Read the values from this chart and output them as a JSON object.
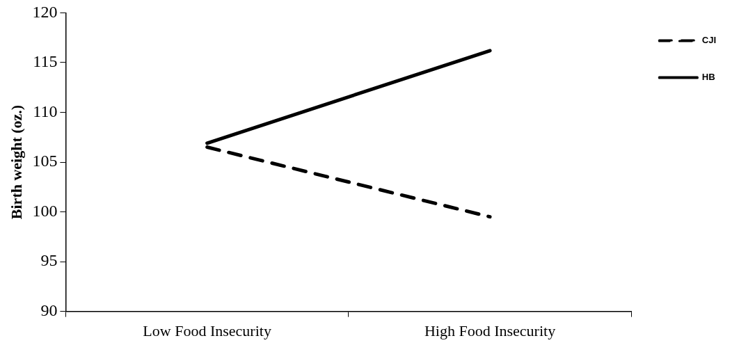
{
  "chart_data": {
    "type": "line",
    "ylabel": "Birth weight (oz.)",
    "categories": [
      "Low Food Insecurity",
      "High Food Insecurity"
    ],
    "series": [
      {
        "name": "CJI",
        "color": "#000000",
        "values": [
          106.5,
          99.5
        ],
        "line_style": "dashed"
      },
      {
        "name": "HB",
        "color": "#000000",
        "values": [
          106.9,
          116.2
        ],
        "line_style": "solid"
      }
    ],
    "ylim": [
      90,
      120
    ],
    "yticks": [
      90,
      95,
      100,
      105,
      110,
      115,
      120
    ],
    "grid": false,
    "legend": "right",
    "marker": "none"
  }
}
